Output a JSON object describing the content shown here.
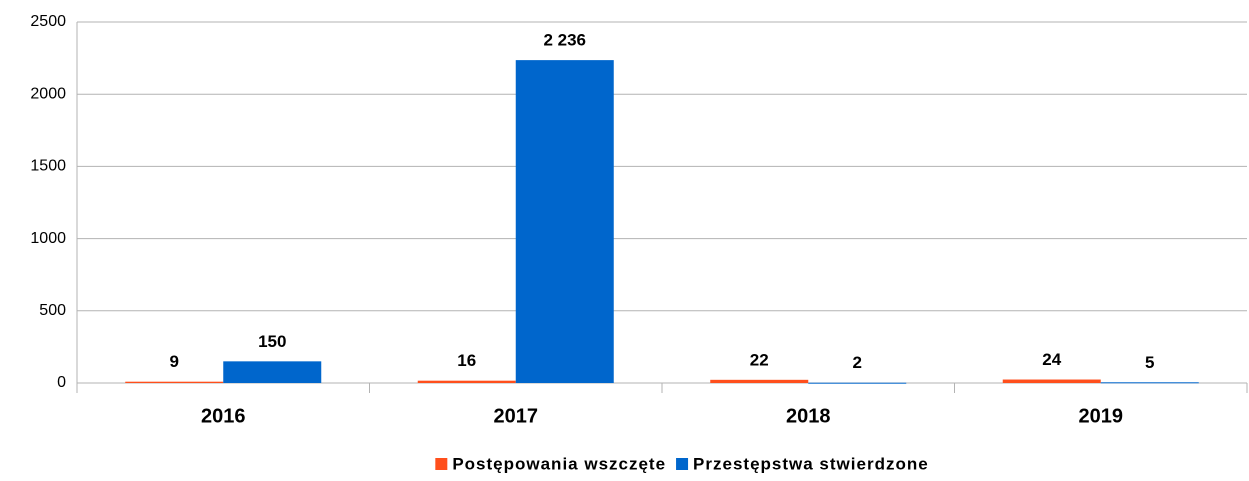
{
  "chart_data": {
    "type": "bar",
    "categories": [
      "2016",
      "2017",
      "2018",
      "2019"
    ],
    "series": [
      {
        "name": "Postępowania wszczęte",
        "color": "#ff4f1c",
        "values": [
          9,
          16,
          22,
          24
        ]
      },
      {
        "name": "Przestępstwa stwierdzone",
        "color": "#0066cc",
        "values": [
          150,
          2236,
          2,
          5
        ],
        "value_labels": [
          "150",
          "2 236",
          "2",
          "5"
        ]
      }
    ],
    "ylim": [
      0,
      2500
    ],
    "yticks": [
      0,
      500,
      1000,
      1500,
      2000,
      2500
    ],
    "grid": true,
    "legend": "bottom"
  }
}
